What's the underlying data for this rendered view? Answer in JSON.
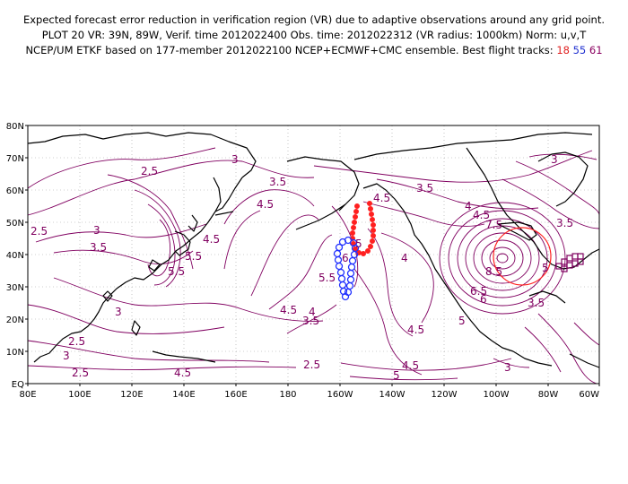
{
  "header": {
    "line1": "Expected forecast error reduction in verification region (VR) due to adaptive observations around any grid point.",
    "line2": "PLOT 20 VR: 39N, 89W, Verif. time 2012022400 Obs. time: 2012022312 (VR radius: 1000km) Norm: u,v,T",
    "line3_prefix": "NCEP/UM ETKF based on 177-member 2012022100 NCEP+ECMWF+CMC ensemble. Best flight tracks:",
    "track_a": "18",
    "track_b": "55",
    "track_c": "61"
  },
  "map": {
    "y_ticks": [
      "80N",
      "70N",
      "60N",
      "50N",
      "40N",
      "30N",
      "20N",
      "10N",
      "EQ"
    ],
    "x_ticks": [
      "80E",
      "100E",
      "120E",
      "140E",
      "160E",
      "180",
      "160W",
      "140W",
      "120W",
      "100W",
      "80W",
      "60W"
    ],
    "contour_labels": [
      "2.5",
      "3",
      "3.5",
      "4",
      "4.5",
      "5",
      "5.5",
      "6",
      "6.5",
      "7.5",
      "8.5"
    ],
    "colors": {
      "contour": "#800060",
      "coast": "#000000",
      "track_red": "#ff2020",
      "track_blue": "#2030ff",
      "track_purple": "#800060",
      "verification_circle": "#ff2020"
    }
  }
}
